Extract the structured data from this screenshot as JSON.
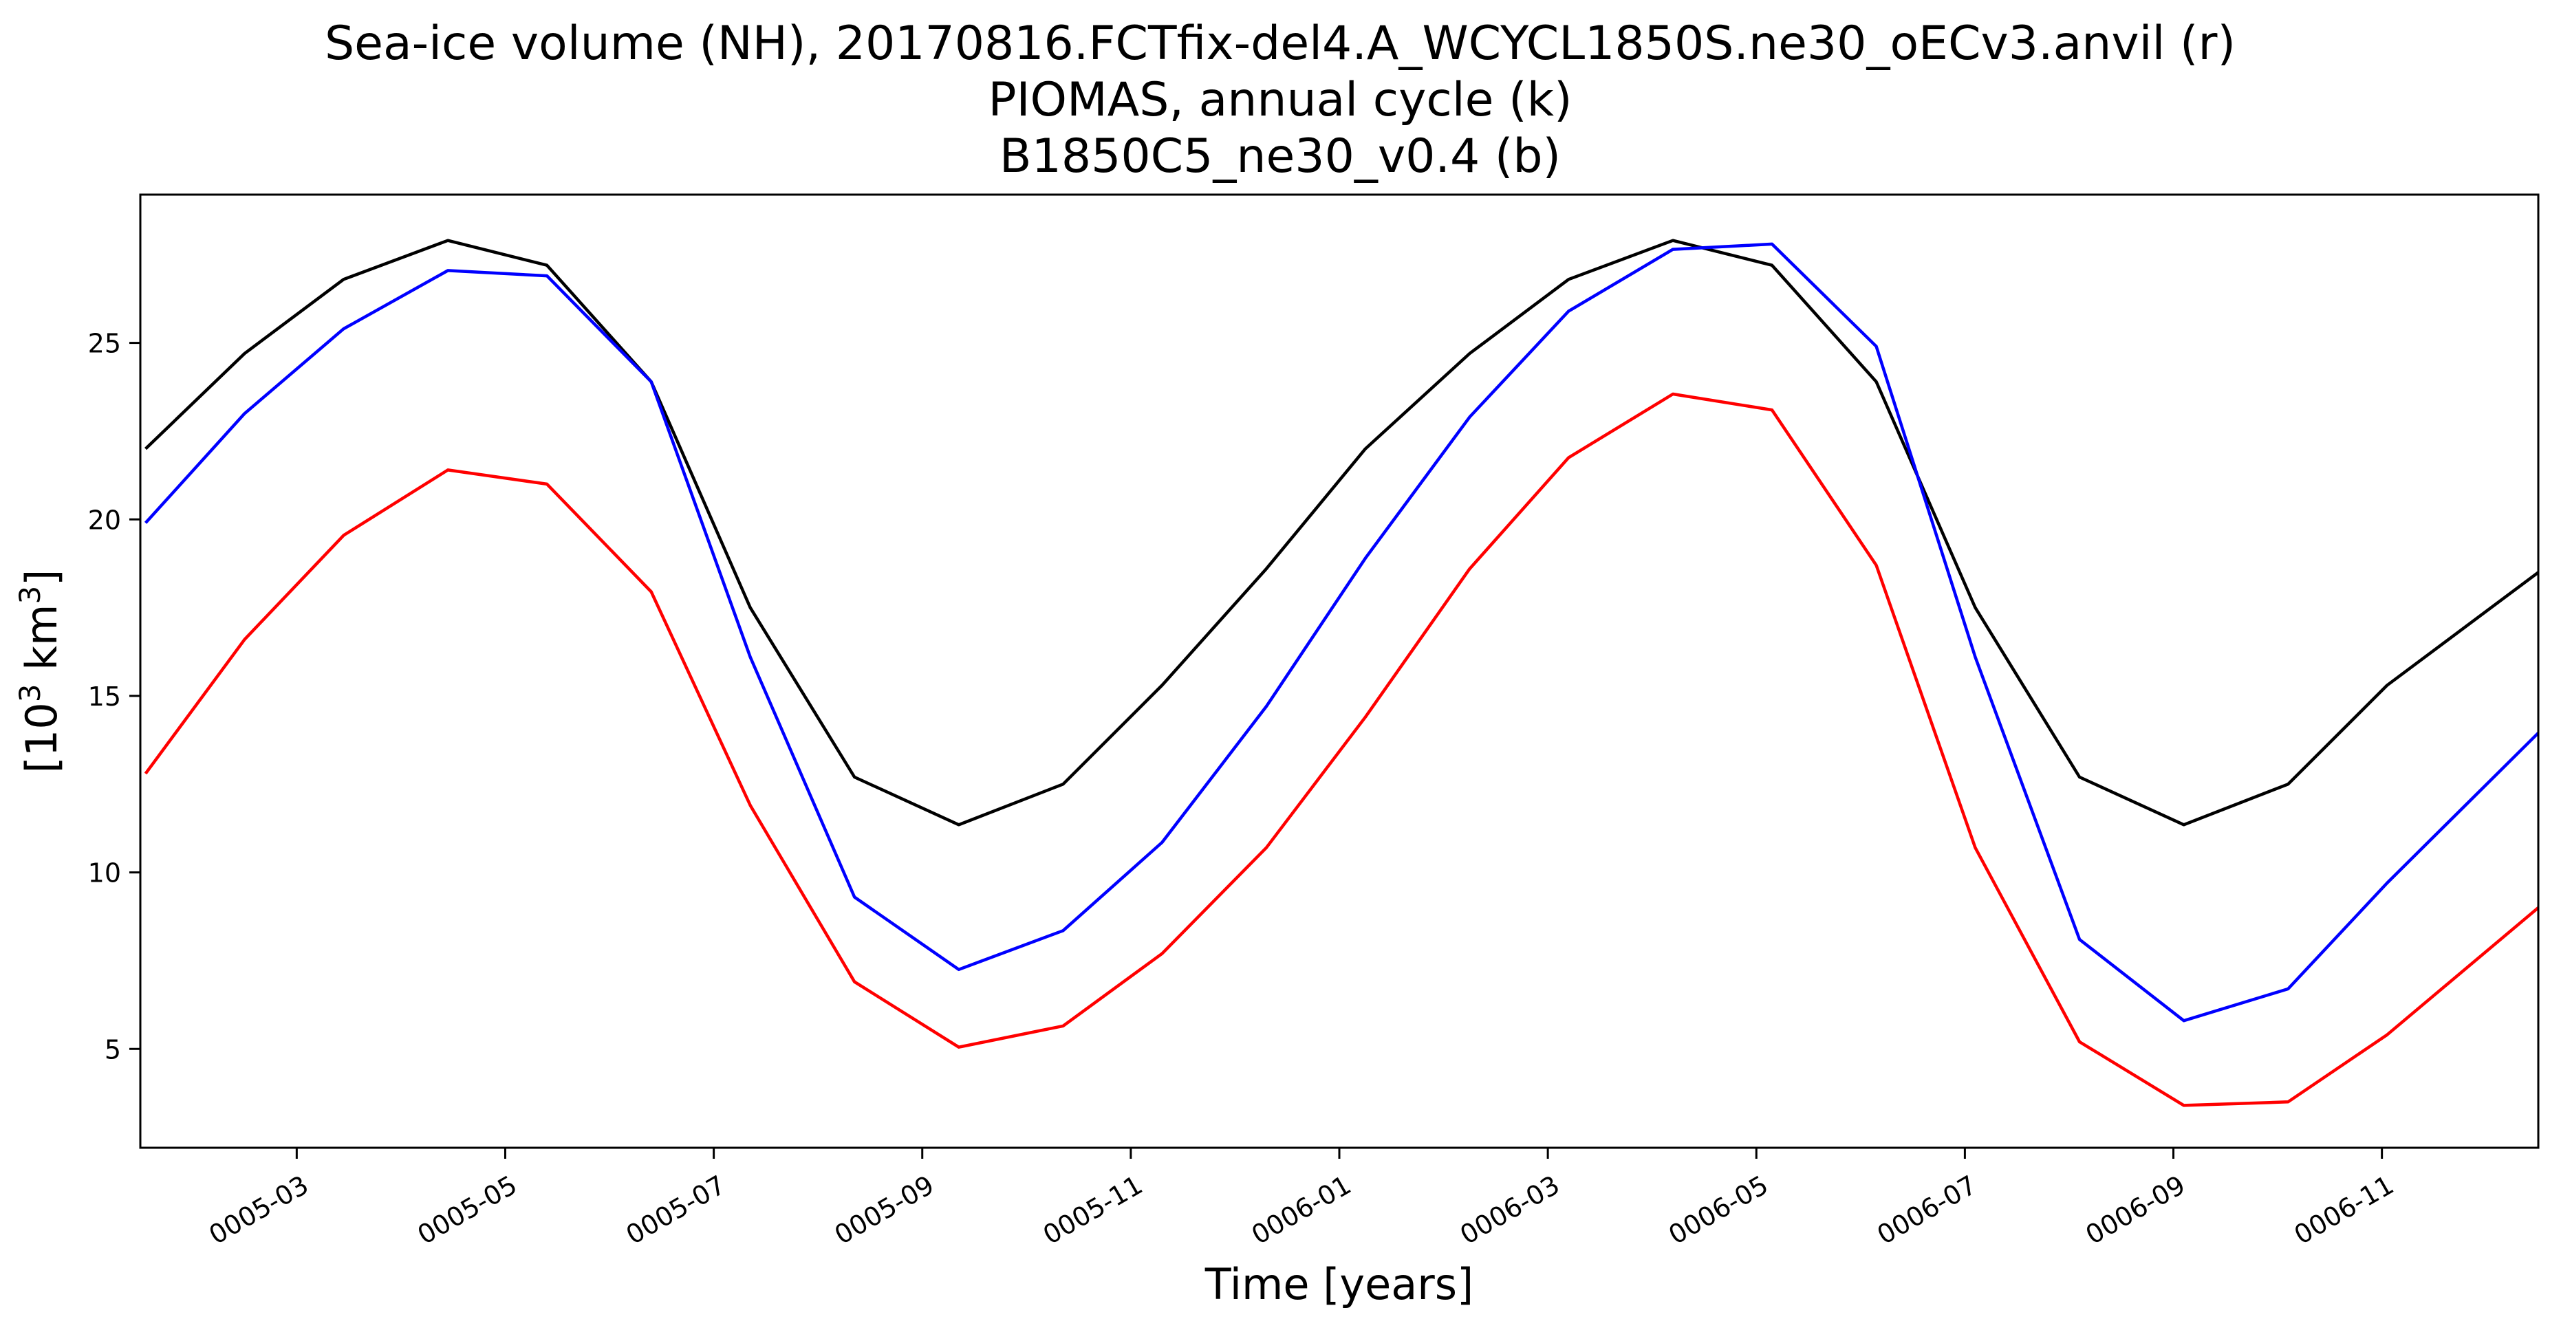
{
  "chart_data": {
    "type": "line",
    "title": [
      "Sea-ice volume (NH), 20170816.FCTfix-del4.A_WCYCL1850S.ne30_oECv3.anvil (r)",
      "PIOMAS, annual cycle (k)",
      "B1850C5_ne30_v0.4 (b)"
    ],
    "xlabel": "Time [years]",
    "ylabel": {
      "prefix": "[10",
      "sup": "3",
      "suffix": " km",
      "sup2": "3",
      "close": "]"
    },
    "xlim": [
      0.0,
      23.0
    ],
    "ylim": [
      2.2,
      29.2
    ],
    "grid": false,
    "legend": "none",
    "x_ticks": [
      {
        "x": 1.5,
        "label": "0005-03"
      },
      {
        "x": 3.5,
        "label": "0005-05"
      },
      {
        "x": 5.5,
        "label": "0005-07"
      },
      {
        "x": 7.5,
        "label": "0005-09"
      },
      {
        "x": 9.5,
        "label": "0005-11"
      },
      {
        "x": 11.5,
        "label": "0006-01"
      },
      {
        "x": 13.5,
        "label": "0006-03"
      },
      {
        "x": 15.5,
        "label": "0006-05"
      },
      {
        "x": 17.5,
        "label": "0006-07"
      },
      {
        "x": 19.5,
        "label": "0006-09"
      },
      {
        "x": 21.5,
        "label": "0006-11"
      }
    ],
    "y_ticks": [
      5,
      10,
      15,
      20,
      25
    ],
    "x": [
      0.05,
      1.0,
      1.95,
      2.95,
      3.9,
      4.9,
      5.85,
      6.85,
      7.85,
      8.85,
      9.8,
      10.8,
      11.75,
      12.75,
      13.7,
      14.7,
      15.65,
      16.65,
      17.6,
      18.6,
      19.6,
      20.6,
      21.55,
      23.0
    ],
    "series": [
      {
        "color": "#000000",
        "values": [
          22.0,
          24.7,
          26.8,
          27.9,
          27.2,
          23.9,
          17.5,
          12.7,
          11.35,
          12.5,
          15.3,
          18.6,
          22.0,
          24.7,
          26.8,
          27.9,
          27.2,
          23.9,
          17.5,
          12.7,
          11.35,
          12.5,
          15.3,
          18.5
        ]
      },
      {
        "color": "#0000ff",
        "values": [
          19.9,
          23.0,
          25.4,
          27.05,
          26.9,
          23.9,
          16.1,
          9.3,
          7.25,
          8.35,
          10.85,
          14.7,
          18.9,
          22.9,
          25.9,
          27.65,
          27.8,
          24.9,
          16.1,
          8.1,
          5.8,
          6.7,
          9.7,
          13.95
        ]
      },
      {
        "color": "#ff0000",
        "values": [
          12.8,
          16.6,
          19.55,
          21.4,
          21.0,
          17.95,
          11.9,
          6.9,
          5.05,
          5.65,
          7.7,
          10.7,
          14.4,
          18.6,
          21.75,
          23.55,
          23.1,
          18.7,
          10.7,
          5.2,
          3.4,
          3.5,
          5.4,
          9.0
        ]
      }
    ]
  }
}
